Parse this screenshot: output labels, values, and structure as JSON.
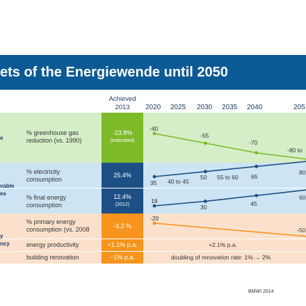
{
  "title": "ets of the Energiewende until 2050",
  "header": {
    "achieved_line1": "Achieved",
    "achieved_line2": "2013",
    "years": [
      "2020",
      "2025",
      "2030",
      "2035",
      "2040",
      "205"
    ]
  },
  "sections": {
    "ghg_frag": "e",
    "renewables_frag1": "vable",
    "renewables_frag2": "es",
    "efficiency_frag1": "y",
    "efficiency_frag2": "ncy"
  },
  "rows": {
    "ghg": {
      "label_line1": "% greenhouse gas",
      "label_line2": "reduction (vs. 1990)",
      "achieved": "-23.8%",
      "achieved_note": "(estimated)"
    },
    "electricity": {
      "label_line1": "% electricity",
      "label_line2": "consumption",
      "achieved": "25.4%"
    },
    "final_energy": {
      "label_line1": "% final energy",
      "label_line2": "consumption",
      "achieved": "12.4%",
      "achieved_note": "(2012)"
    },
    "primary_energy": {
      "label_line1": "% primary energy",
      "label_line2": "consumption (vs. 2008",
      "achieved": "-3.3 %"
    },
    "productivity": {
      "label": "energy productivity",
      "achieved": "+1.1% p.a.",
      "target": "+2.1% p.a."
    },
    "renovation": {
      "label": "building renovation",
      "achieved": "~1% p.a.",
      "target": "doubling of renovation rate: 1% → 2%"
    }
  },
  "chart_data": {
    "type": "line",
    "x": [
      2020,
      2030,
      2040,
      2050
    ],
    "series": [
      {
        "values": [
          -40,
          -55,
          -70,
          -80
        ],
        "labels": [
          "-40",
          "-55",
          "-70",
          "-80 to"
        ],
        "color": "#7dba28"
      },
      {
        "values": [
          35,
          50,
          65,
          80
        ],
        "labels": [
          "35",
          "50",
          "65",
          "80"
        ],
        "extra_labels": [
          "40 to 45",
          "55 to 60"
        ],
        "color": "#1d4f85"
      },
      {
        "values": [
          18,
          30,
          45,
          60
        ],
        "labels": [
          "18",
          "30",
          "45",
          "60"
        ],
        "color": "#1d4f85"
      },
      {
        "values": [
          -20,
          -50
        ],
        "x": [
          2020,
          2050
        ],
        "labels": [
          "-20",
          "-50"
        ],
        "color": "#f7941d"
      }
    ]
  },
  "colors": {
    "title_bar": "#0b5a96",
    "green": "#7dba28",
    "navy": "#1d4f85",
    "orange": "#f7941d"
  },
  "credit": "BMWI 2014"
}
